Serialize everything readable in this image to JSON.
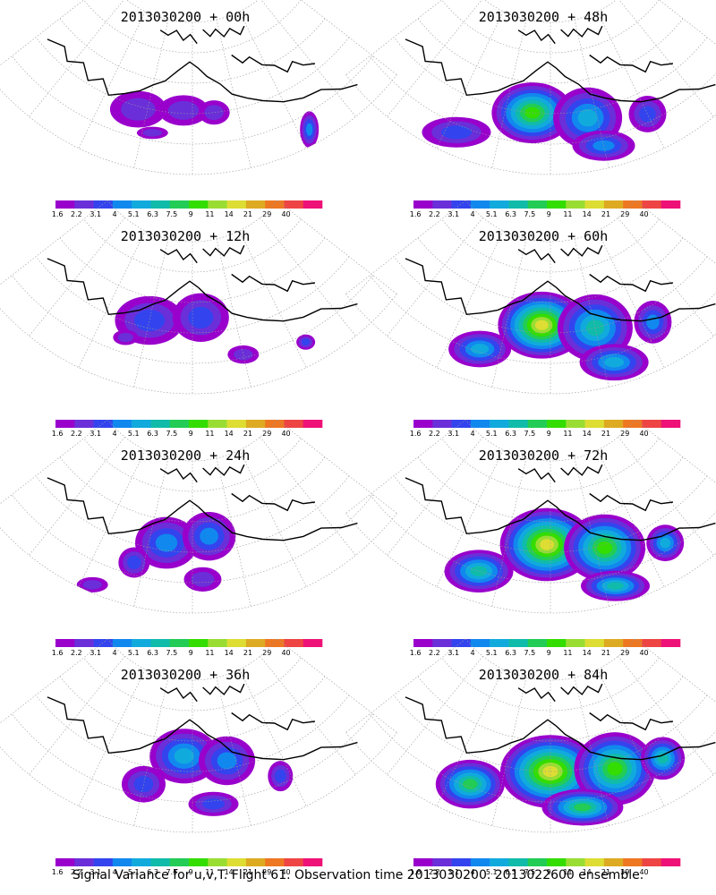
{
  "caption": "Signal Variance for u,v,T. Flight 61. Observation time 2013030200. 2013022600 ensemble.",
  "colorbar": {
    "labels": [
      "1.6",
      "2.2",
      "3.1",
      "4",
      "5.1",
      "6.3",
      "7.5",
      "9",
      "11",
      "14",
      "21",
      "29",
      "40"
    ],
    "colors": [
      "#9900cc",
      "#6a2fd9",
      "#3344ee",
      "#1188ee",
      "#11aadd",
      "#11bbaa",
      "#22cc55",
      "#33dd00",
      "#99dd33",
      "#dddd33",
      "#ddaa22",
      "#ee7722",
      "#ee4444",
      "#ee1177"
    ]
  },
  "panels": [
    {
      "title": "2013030200 + 00h",
      "level": 0.5,
      "blobs": [
        [
          -0.3,
          0.62,
          0.18,
          0.12,
          1
        ],
        [
          -0.05,
          0.58,
          0.16,
          0.1,
          1
        ],
        [
          0.12,
          0.6,
          0.1,
          0.08,
          1
        ],
        [
          -0.2,
          0.75,
          0.1,
          0.04,
          1
        ],
        [
          0.55,
          0.9,
          0.06,
          0.12,
          3
        ]
      ]
    },
    {
      "title": "2013030200 + 12h",
      "level": 1.2,
      "blobs": [
        [
          -0.25,
          0.55,
          0.22,
          0.16,
          2
        ],
        [
          0.05,
          0.5,
          0.18,
          0.16,
          2
        ],
        [
          0.25,
          0.78,
          0.1,
          0.06,
          1
        ],
        [
          0.55,
          0.85,
          0.06,
          0.05,
          2
        ],
        [
          -0.35,
          0.7,
          0.08,
          0.05,
          1
        ]
      ]
    },
    {
      "title": "2013030200 + 24h",
      "level": 2.5,
      "blobs": [
        [
          -0.15,
          0.55,
          0.2,
          0.17,
          3
        ],
        [
          0.1,
          0.5,
          0.17,
          0.16,
          3
        ],
        [
          -0.3,
          0.72,
          0.1,
          0.1,
          2
        ],
        [
          0.05,
          0.78,
          0.12,
          0.08,
          1
        ],
        [
          -0.45,
          0.95,
          0.1,
          0.05,
          1
        ]
      ]
    },
    {
      "title": "2013030200 + 36h",
      "level": 3.5,
      "blobs": [
        [
          -0.05,
          0.5,
          0.22,
          0.18,
          4
        ],
        [
          0.2,
          0.55,
          0.18,
          0.16,
          3
        ],
        [
          -0.25,
          0.72,
          0.14,
          0.12,
          2
        ],
        [
          0.1,
          0.82,
          0.16,
          0.08,
          2
        ],
        [
          0.45,
          0.75,
          0.08,
          0.1,
          2
        ]
      ]
    },
    {
      "title": "2013030200 + 48h",
      "level": 5.0,
      "blobs": [
        [
          -0.1,
          0.6,
          0.26,
          0.2,
          7
        ],
        [
          0.2,
          0.65,
          0.22,
          0.2,
          4
        ],
        [
          -0.45,
          0.85,
          0.22,
          0.1,
          2
        ],
        [
          0.25,
          0.85,
          0.2,
          0.1,
          3
        ],
        [
          0.5,
          0.75,
          0.12,
          0.12,
          2
        ]
      ]
    },
    {
      "title": "2013030200 + 60h",
      "level": 6.0,
      "blobs": [
        [
          -0.05,
          0.55,
          0.28,
          0.22,
          9
        ],
        [
          0.25,
          0.6,
          0.24,
          0.22,
          5
        ],
        [
          -0.35,
          0.78,
          0.2,
          0.12,
          4
        ],
        [
          0.3,
          0.85,
          0.22,
          0.12,
          4
        ],
        [
          0.55,
          0.7,
          0.12,
          0.14,
          3
        ]
      ]
    },
    {
      "title": "2013030200 + 72h",
      "level": 7.0,
      "blobs": [
        [
          -0.02,
          0.55,
          0.3,
          0.24,
          9
        ],
        [
          0.3,
          0.62,
          0.26,
          0.22,
          7
        ],
        [
          -0.35,
          0.8,
          0.22,
          0.14,
          5
        ],
        [
          0.3,
          0.88,
          0.22,
          0.1,
          5
        ],
        [
          0.6,
          0.75,
          0.12,
          0.12,
          4
        ]
      ]
    },
    {
      "title": "2013030200 + 84h",
      "level": 7.5,
      "blobs": [
        [
          0.0,
          0.6,
          0.32,
          0.24,
          9
        ],
        [
          0.35,
          0.65,
          0.26,
          0.24,
          7
        ],
        [
          -0.4,
          0.78,
          0.22,
          0.16,
          6
        ],
        [
          0.15,
          0.85,
          0.26,
          0.12,
          6
        ],
        [
          0.6,
          0.72,
          0.14,
          0.14,
          5
        ]
      ]
    }
  ]
}
